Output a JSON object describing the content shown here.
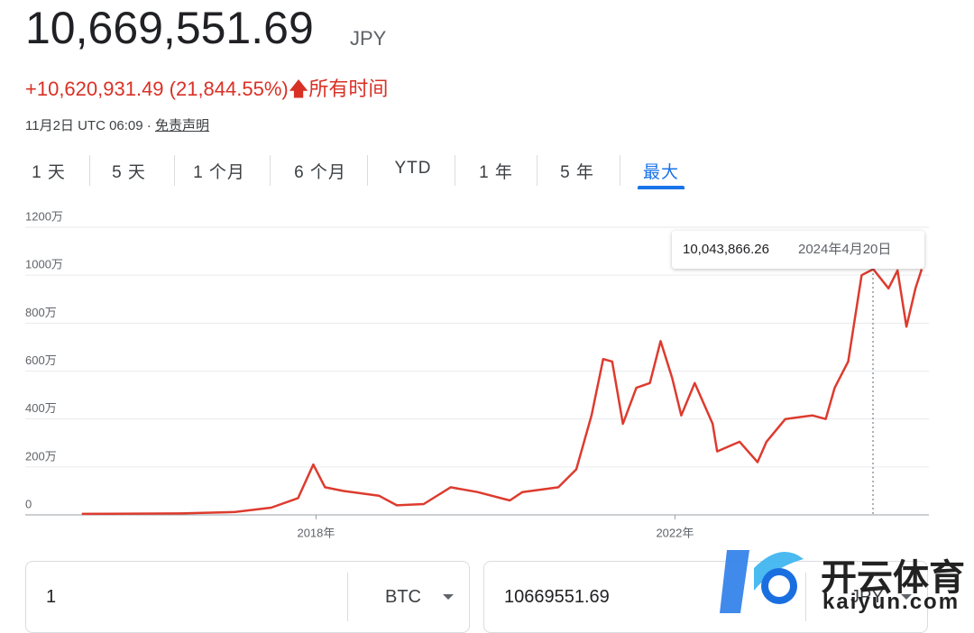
{
  "header": {
    "price": "10,669,551.69",
    "currency": "JPY",
    "change": "+10,620,931.49 (21,844.55%)",
    "period": "所有时间",
    "timestamp": "11月2日 UTC 06:09 · ",
    "disclaimer": "免责声明"
  },
  "tabs": {
    "items": [
      "1 天",
      "5 天",
      "1 个月",
      "6 个月",
      "YTD",
      "1 年",
      "5 年",
      "最大"
    ],
    "active": 7
  },
  "chart_data": {
    "type": "line",
    "color": "#dd3b2e",
    "x": [
      2015.39,
      2016.49,
      2017.1,
      2017.5,
      2017.8,
      2017.97,
      2018.1,
      2018.3,
      2018.7,
      2018.9,
      2019.2,
      2019.5,
      2019.8,
      2020.16,
      2020.3,
      2020.7,
      2020.9,
      2021.07,
      2021.2,
      2021.3,
      2021.42,
      2021.57,
      2021.72,
      2021.84,
      2021.97,
      2022.07,
      2022.22,
      2022.42,
      2022.47,
      2022.72,
      2022.92,
      2023.02,
      2023.23,
      2023.53,
      2023.68,
      2023.78,
      2023.93,
      2024.08,
      2024.21,
      2024.38,
      2024.48,
      2024.58,
      2024.68,
      2024.75
    ],
    "values": [
      40000,
      60000,
      120000,
      300000,
      700000,
      2100000,
      1150000,
      1000000,
      800000,
      400000,
      450000,
      1150000,
      950000,
      600000,
      950000,
      1150000,
      1900000,
      4150000,
      6500000,
      6400000,
      3800000,
      5300000,
      5500000,
      7250000,
      5700000,
      4150000,
      5500000,
      3800000,
      2650000,
      3050000,
      2200000,
      3050000,
      4000000,
      4150000,
      4000000,
      5300000,
      6400000,
      10000000,
      10250000,
      9450000,
      10200000,
      7850000,
      9450000,
      10250000
    ],
    "xlim": [
      2014.88,
      2024.83
    ],
    "xticks": [
      {
        "value": 2018,
        "label": "2018年"
      },
      {
        "value": 2022,
        "label": "2022年"
      }
    ],
    "ylim": [
      0,
      12000000
    ],
    "yticks": [
      0,
      {
        "value": 2000000,
        "label": "200万"
      },
      {
        "value": 4000000,
        "label": "400万"
      },
      {
        "value": 6000000,
        "label": "600万"
      },
      {
        "value": 8000000,
        "label": "800万"
      },
      {
        "value": 10000000,
        "label": "1000万"
      },
      {
        "value": 12000000,
        "label": "1200万"
      }
    ],
    "grid": true,
    "tooltip": {
      "value": "10,043,866.26",
      "date": "2024年4月20日"
    }
  },
  "converter": {
    "from_amount": "1",
    "from_currency": "BTC",
    "to_amount": "10669551.69",
    "to_currency": "JPY"
  },
  "watermark": {
    "name": "开云体育",
    "site": "kaiyun.com"
  }
}
